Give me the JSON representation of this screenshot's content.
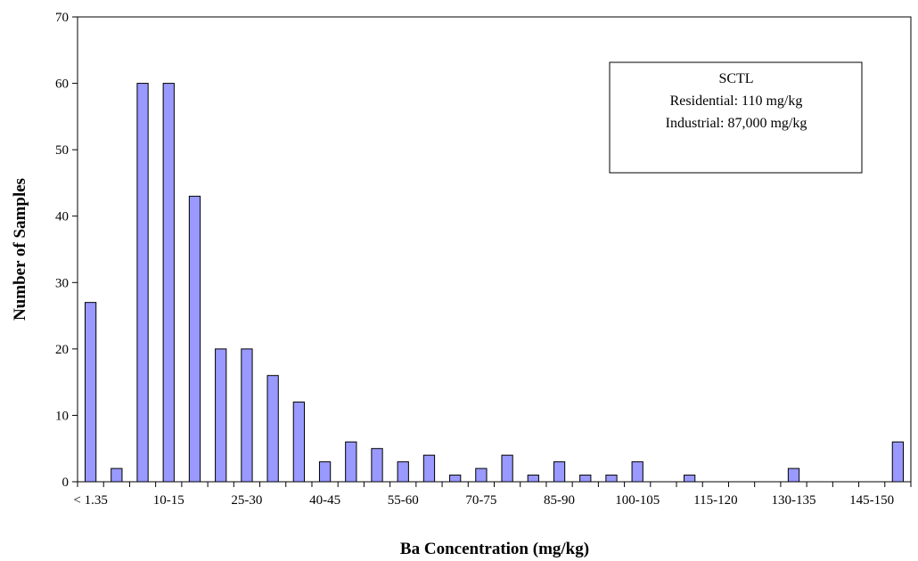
{
  "chart_data": {
    "type": "bar",
    "title": "",
    "xlabel": "Ba Concentration (mg/kg)",
    "ylabel": "Number of Samples",
    "ylim": [
      0,
      70
    ],
    "yticks": [
      0,
      10,
      20,
      30,
      40,
      50,
      60,
      70
    ],
    "categories": [
      "< 1.35",
      "1.35-5",
      "5-10",
      "10-15",
      "15-20",
      "20-25",
      "25-30",
      "30-35",
      "35-40",
      "40-45",
      "45-50",
      "50-55",
      "55-60",
      "60-65",
      "65-70",
      "70-75",
      "75-80",
      "80-85",
      "85-90",
      "90-95",
      "95-100",
      "100-105",
      "105-110",
      "110-115",
      "115-120",
      "120-125",
      "125-130",
      "130-135",
      "135-140",
      "140-145",
      "145-150",
      "> 150"
    ],
    "shown_category_labels": [
      "< 1.35",
      "10-15",
      "25-30",
      "40-45",
      "55-60",
      "70-75",
      "85-90",
      "100-105",
      "115-120",
      "130-135",
      "145-150"
    ],
    "values": [
      27,
      2,
      60,
      60,
      43,
      20,
      20,
      16,
      12,
      3,
      6,
      5,
      3,
      4,
      1,
      2,
      4,
      1,
      3,
      1,
      1,
      3,
      0,
      1,
      0,
      0,
      0,
      2,
      0,
      0,
      0,
      6
    ],
    "bar_color": "#9999ff",
    "grid": false,
    "legend_position": "top-right"
  },
  "annotation": {
    "lines": [
      "SCTL",
      "Residential: 110 mg/kg",
      "Industrial: 87,000 mg/kg"
    ]
  }
}
